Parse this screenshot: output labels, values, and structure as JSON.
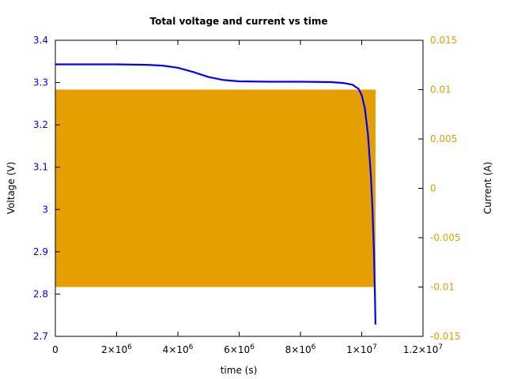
{
  "chart_data": {
    "type": "line",
    "title": "Total voltage and current vs time",
    "xlabel": "time (s)",
    "ylabel": "Voltage (V)",
    "y2label": "Current (A)",
    "xlim": [
      0,
      12000000
    ],
    "ylim": [
      2.7,
      3.4
    ],
    "y2lim": [
      -0.015,
      0.015
    ],
    "x_ticks": [
      {
        "value": 0,
        "label": "0",
        "mant": "0",
        "exp": ""
      },
      {
        "value": 2000000,
        "label": "2×10^6",
        "mant": "2×10",
        "exp": "6"
      },
      {
        "value": 4000000,
        "label": "4×10^6",
        "mant": "4×10",
        "exp": "6"
      },
      {
        "value": 6000000,
        "label": "6×10^6",
        "mant": "6×10",
        "exp": "6"
      },
      {
        "value": 8000000,
        "label": "8×10^6",
        "mant": "8×10",
        "exp": "6"
      },
      {
        "value": 10000000,
        "label": "1×10^7",
        "mant": "1×10",
        "exp": "7"
      },
      {
        "value": 12000000,
        "label": "1.2×10^7",
        "mant": "1.2×10",
        "exp": "7"
      }
    ],
    "y_ticks": [
      {
        "value": 2.7,
        "label": "2.7"
      },
      {
        "value": 2.8,
        "label": "2.8"
      },
      {
        "value": 2.9,
        "label": "2.9"
      },
      {
        "value": 3.0,
        "label": "3"
      },
      {
        "value": 3.1,
        "label": "3.1"
      },
      {
        "value": 3.2,
        "label": "3.2"
      },
      {
        "value": 3.3,
        "label": "3.3"
      },
      {
        "value": 3.4,
        "label": "3.4"
      }
    ],
    "y2_ticks": [
      {
        "value": -0.015,
        "label": "-0.015"
      },
      {
        "value": -0.01,
        "label": "-0.01"
      },
      {
        "value": -0.005,
        "label": "-0.005"
      },
      {
        "value": 0,
        "label": "0"
      },
      {
        "value": 0.005,
        "label": "0.005"
      },
      {
        "value": 0.01,
        "label": "0.01"
      },
      {
        "value": 0.015,
        "label": "0.015"
      }
    ],
    "grid": false,
    "legend": null,
    "series": [
      {
        "name": "Voltage",
        "axis": "left",
        "color": "#0000ff",
        "x": [
          0,
          1000000,
          2000000,
          3000000,
          3500000,
          4000000,
          4500000,
          5000000,
          5500000,
          6000000,
          7000000,
          8000000,
          9000000,
          9400000,
          9700000,
          9900000,
          10000000,
          10100000,
          10200000,
          10300000,
          10350000,
          10400000,
          10430000,
          10450000
        ],
        "values": [
          3.343,
          3.343,
          3.343,
          3.342,
          3.34,
          3.335,
          3.325,
          3.313,
          3.306,
          3.303,
          3.302,
          3.302,
          3.301,
          3.299,
          3.295,
          3.285,
          3.27,
          3.24,
          3.18,
          3.08,
          3.0,
          2.9,
          2.8,
          2.728
        ]
      },
      {
        "name": "Current",
        "axis": "right",
        "color": "#e69f00",
        "style": "dense-oscillation",
        "x_range": [
          0,
          10450000
        ],
        "min": -0.01,
        "max": 0.01,
        "left_axis_equivalent": [
          2.8,
          3.3
        ]
      }
    ]
  },
  "colors": {
    "voltage": "#0000ff",
    "current": "#e69f00",
    "axis": "#000000"
  }
}
